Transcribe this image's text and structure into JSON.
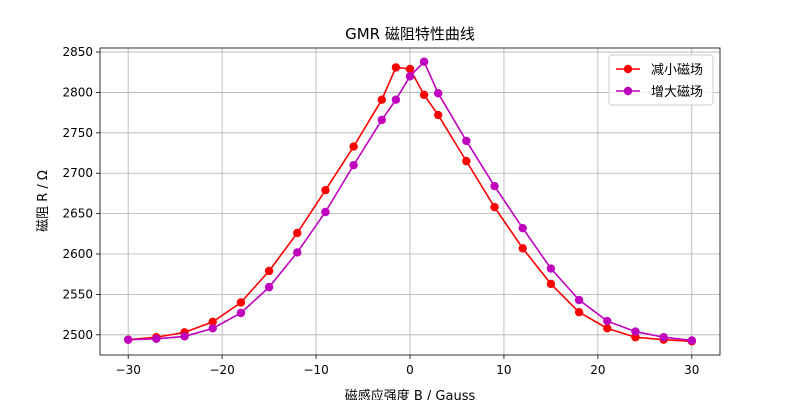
{
  "chart_data": {
    "type": "line",
    "title": "GMR 磁阻特性曲线",
    "xlabel": "磁感应强度 B / Gauss",
    "ylabel": "磁阻 R / Ω",
    "xlim": [
      -33,
      33
    ],
    "ylim": [
      2475,
      2855
    ],
    "xticks": [
      -30,
      -20,
      -10,
      0,
      10,
      20,
      30
    ],
    "yticks": [
      2500,
      2550,
      2600,
      2650,
      2700,
      2750,
      2800,
      2850
    ],
    "grid": true,
    "legend_position": "top-right",
    "series": [
      {
        "name": "减小磁场",
        "color": "#ff0000",
        "marker": "circle",
        "x": [
          30,
          27,
          24,
          21,
          18,
          15,
          12,
          9,
          6,
          3,
          1.5,
          0,
          -1.5,
          -3,
          -6,
          -9,
          -12,
          -15,
          -18,
          -21,
          -24,
          -27,
          -30
        ],
        "y": [
          2492,
          2494,
          2497,
          2508,
          2528,
          2563,
          2607,
          2658,
          2715,
          2772,
          2797,
          2829,
          2831,
          2791,
          2733,
          2679,
          2626,
          2579,
          2540,
          2516,
          2503,
          2497,
          2494
        ]
      },
      {
        "name": "增大磁场",
        "color": "#bf00bf",
        "marker": "circle",
        "x": [
          -30,
          -27,
          -24,
          -21,
          -18,
          -15,
          -12,
          -9,
          -6,
          -3,
          -1.5,
          0,
          1.5,
          3,
          6,
          9,
          12,
          15,
          18,
          21,
          24,
          27,
          30
        ],
        "y": [
          2494,
          2495,
          2498,
          2508,
          2527,
          2559,
          2602,
          2652,
          2710,
          2766,
          2791,
          2820,
          2838,
          2799,
          2740,
          2684,
          2632,
          2582,
          2543,
          2517,
          2504,
          2497,
          2493
        ]
      }
    ]
  }
}
